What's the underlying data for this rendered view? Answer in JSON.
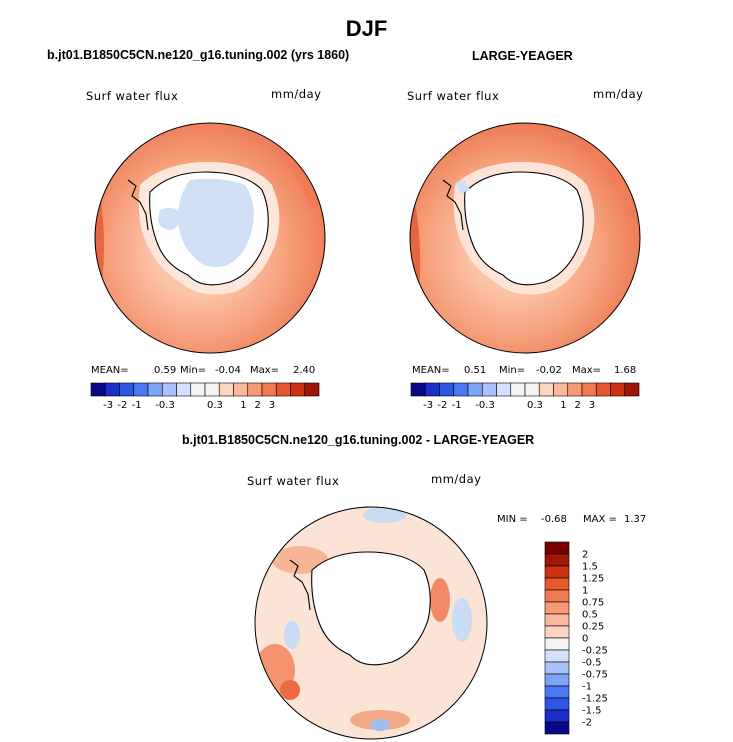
{
  "figure": {
    "title": "DJF"
  },
  "colors": {
    "neg": [
      "#08088a",
      "#1a2fc7",
      "#2f56e6",
      "#4a77f2",
      "#7ea3f7",
      "#a9c3fa",
      "#d3e1fd"
    ],
    "zero": "#f5f3f1",
    "pos": [
      "#fcd5c0",
      "#fbb89d",
      "#f89a77",
      "#f27a52",
      "#e9572f",
      "#cc3214",
      "#a01607",
      "#7a0000"
    ],
    "land": "#ffffff",
    "coast": "#000000"
  },
  "panels": [
    {
      "title": "b.jt01.B1850C5CN.ne120_g16.tuning.002 (yrs 1860)",
      "field_label": "Surf water flux",
      "units": "mm/day",
      "stats": {
        "mean_label": "MEAN=",
        "mean": "0.59",
        "min_label": "Min=",
        "min": "-0.04",
        "max_label": "Max=",
        "max": "2.40"
      },
      "colorbar_ticks": [
        "-3",
        "-2",
        "-1",
        "-0.3",
        "0.3",
        "1",
        "2",
        "3"
      ]
    },
    {
      "title": "LARGE-YEAGER",
      "field_label": "Surf water flux",
      "units": "mm/day",
      "stats": {
        "mean_label": "MEAN=",
        "mean": "0.51",
        "min_label": "Min=",
        "min": "-0.02",
        "max_label": "Max=",
        "max": "1.68"
      },
      "colorbar_ticks": [
        "-3",
        "-2",
        "-1",
        "-0.3",
        "0.3",
        "1",
        "2",
        "3"
      ]
    },
    {
      "title": "b.jt01.B1850C5CN.ne120_g16.tuning.002 - LARGE-YEAGER",
      "field_label": "Surf water flux",
      "units": "mm/day",
      "stats": {
        "min_label": "MIN =",
        "min": "-0.68",
        "max_label": "MAX =",
        "max": "1.37"
      },
      "colorbar_ticks": [
        "2",
        "1.5",
        "1.25",
        "1",
        "0.75",
        "0.5",
        "0.25",
        "0",
        "-0.25",
        "-0.5",
        "-0.75",
        "-1",
        "-1.25",
        "-1.5",
        "-2"
      ]
    }
  ]
}
